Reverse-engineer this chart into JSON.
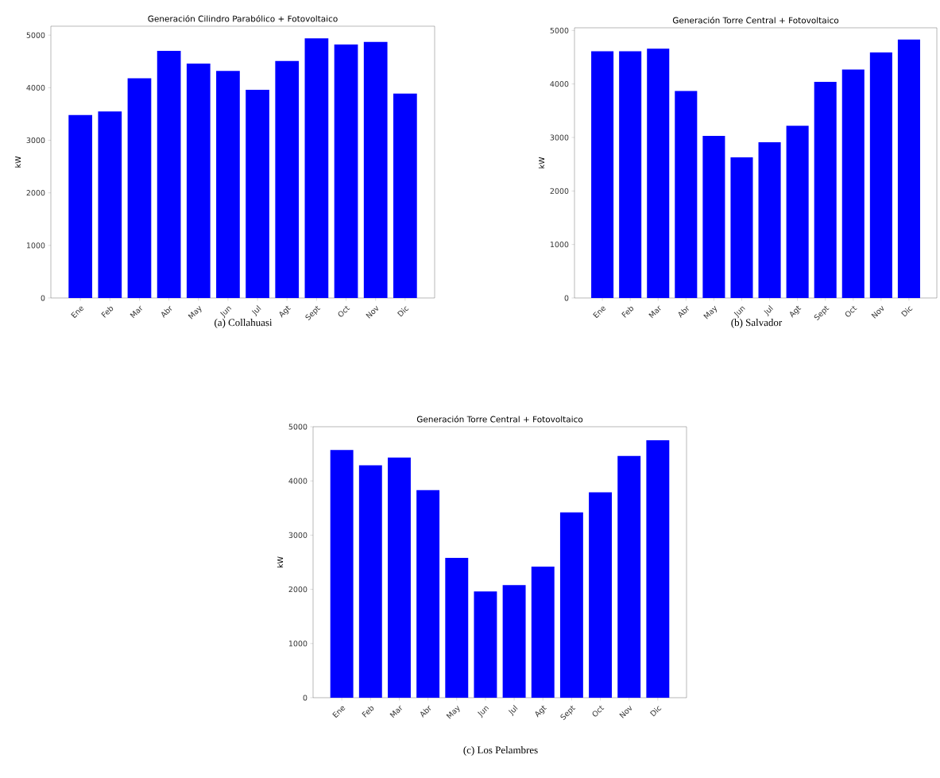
{
  "chart_data": [
    {
      "type": "bar",
      "title": "Generación Cilindro Parabólico + Fotovoltaico",
      "ylabel": "kW",
      "categories": [
        "Ene",
        "Feb",
        "Mar",
        "Abr",
        "May",
        "Jun",
        "Jul",
        "Agt",
        "Sept",
        "Oct",
        "Nov",
        "Dic"
      ],
      "values": [
        3480,
        3550,
        4180,
        4700,
        4460,
        4320,
        3960,
        4510,
        4940,
        4820,
        4870,
        3890
      ],
      "color": "#0000ff",
      "ylim": [
        0,
        5170
      ],
      "yticks": [
        0,
        1000,
        2000,
        3000,
        4000,
        5000
      ],
      "annotations": [
        "(a) Collahuasi"
      ]
    },
    {
      "type": "bar",
      "title": "Generación Torre Central + Fotovoltaico",
      "ylabel": "kW",
      "categories": [
        "Ene",
        "Feb",
        "Mar",
        "Abr",
        "May",
        "Jun",
        "Jul",
        "Agt",
        "Sept",
        "Oct",
        "Nov",
        "Dic"
      ],
      "values": [
        4610,
        4610,
        4660,
        3870,
        3030,
        2630,
        2910,
        3220,
        4040,
        4270,
        4590,
        4830
      ],
      "color": "#0000ff",
      "ylim": [
        0,
        5050
      ],
      "yticks": [
        0,
        1000,
        2000,
        3000,
        4000,
        5000
      ],
      "annotations": [
        "(b) Salvador"
      ]
    },
    {
      "type": "bar",
      "title": "Generación Torre Central + Fotovoltaico",
      "ylabel": "kW",
      "categories": [
        "Ene",
        "Feb",
        "Mar",
        "Abr",
        "May",
        "Jun",
        "Jul",
        "Agt",
        "Sept",
        "Oct",
        "Nov",
        "Dic"
      ],
      "values": [
        4570,
        4290,
        4430,
        3830,
        2580,
        1960,
        2080,
        2420,
        3420,
        3790,
        4460,
        4750
      ],
      "color": "#0000ff",
      "ylim": [
        0,
        5000
      ],
      "yticks": [
        0,
        1000,
        2000,
        3000,
        4000,
        5000
      ],
      "annotations": [
        "(c) Los Pelambres"
      ]
    }
  ]
}
